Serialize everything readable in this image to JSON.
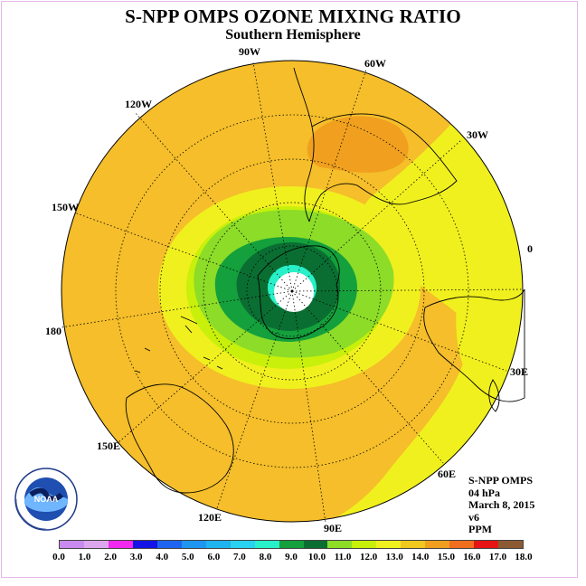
{
  "header": {
    "title": "S-NPP OMPS OZONE MIXING RATIO",
    "subtitle": "Southern Hemisphere"
  },
  "longitude_labels": [
    "90W",
    "60W",
    "120W",
    "30W",
    "150W",
    "0",
    "180",
    "30E",
    "150E",
    "60E",
    "120E",
    "90E"
  ],
  "info": {
    "instrument": "S-NPP OMPS",
    "level": "04 hPa",
    "date": "March 8, 2015",
    "version": "v6",
    "units": "PPM"
  },
  "logo": {
    "text": "NOAA",
    "ring_text": "NATIONAL OCEANIC AND ATMOSPHERIC ADMINISTRATION · U.S. DEPARTMENT OF COMMERCE"
  },
  "colorbar": {
    "tick_labels": [
      "0.0",
      "1.0",
      "2.0",
      "3.0",
      "4.0",
      "5.0",
      "6.0",
      "7.0",
      "8.0",
      "9.0",
      "10.0",
      "11.0",
      "12.0",
      "13.0",
      "14.0",
      "15.0",
      "16.0",
      "17.0",
      "18.0"
    ],
    "colors": [
      "#c98bef",
      "#dca7ef",
      "#f028f0",
      "#1414e6",
      "#1e64f0",
      "#1e96f0",
      "#1eb4f0",
      "#28d2f0",
      "#28f0c8",
      "#14a03c",
      "#0a6e32",
      "#8cdc28",
      "#c8f00a",
      "#f0f01e",
      "#f0c81e",
      "#f0a01e",
      "#f06e1e",
      "#e61414",
      "#8c5a32"
    ]
  },
  "field_colors": {
    "ocean_background": "#f5be2a",
    "outer_ring": "#f0f01e",
    "high_patch": "#f0a01e",
    "ring_12_13": "#c8f00a",
    "ring_11_12": "#8cdc28",
    "ring_9_10": "#14a03c",
    "ring_8_9": "#0a6e32",
    "ring_7_8": "#28f0c8",
    "pole_hole": "#ffffff"
  }
}
